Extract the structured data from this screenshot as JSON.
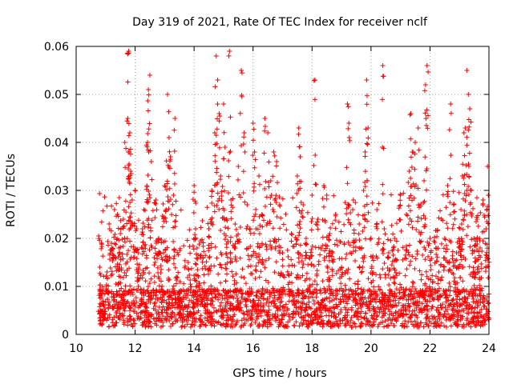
{
  "chart_data": {
    "type": "scatter",
    "title": "Day 319 of 2021, Rate Of TEC Index for receiver nclf",
    "xlabel": "GPS time / hours",
    "ylabel": "ROTI / TECUs",
    "xlim": [
      10,
      24
    ],
    "ylim": [
      0,
      0.06
    ],
    "x_ticks": [
      10,
      12,
      14,
      16,
      18,
      20,
      22,
      24
    ],
    "x_tick_labels": [
      "10",
      "12",
      "14",
      "16",
      "18",
      "20",
      "22",
      "24"
    ],
    "y_ticks": [
      0,
      0.01,
      0.02,
      0.03,
      0.04,
      0.05,
      0.06
    ],
    "y_tick_labels": [
      "0",
      "0.01",
      "0.02",
      "0.03",
      "0.04",
      "0.05",
      "0.06"
    ],
    "grid": true,
    "marker": "plus",
    "color": "#ff0000",
    "data_range_hours": [
      10.75,
      24.0
    ],
    "series": [
      {
        "name": "ROTI",
        "x": [
          10.8,
          10.85,
          10.95,
          11.05,
          11.2,
          11.3,
          11.4,
          11.45,
          11.5,
          11.6,
          11.65,
          11.75,
          11.78,
          11.8,
          11.82,
          11.85,
          11.9,
          12.0,
          12.05,
          12.1,
          12.25,
          12.3,
          12.4,
          12.42,
          12.45,
          12.5,
          12.55,
          12.7,
          12.8,
          12.9,
          13.0,
          13.05,
          13.1,
          13.15,
          13.2,
          13.3,
          13.35,
          13.4,
          13.5,
          13.6,
          13.8,
          14.0,
          14.05,
          14.1,
          14.15,
          14.3,
          14.5,
          14.6,
          14.7,
          14.75,
          14.8,
          14.85,
          14.9,
          15.0,
          15.05,
          15.1,
          15.2,
          15.25,
          15.4,
          15.5,
          15.6,
          15.7,
          15.8,
          15.9,
          16.0,
          16.05,
          16.1,
          16.2,
          16.3,
          16.4,
          16.5,
          16.6,
          16.7,
          16.8,
          16.9,
          17.0,
          17.3,
          17.5,
          17.55,
          17.6,
          17.7,
          17.8,
          17.9,
          18.0,
          18.1,
          18.2,
          18.4,
          18.5,
          18.6,
          18.7,
          18.8,
          19.0,
          19.2,
          19.25,
          19.4,
          19.6,
          19.75,
          19.8,
          19.85,
          19.9,
          20.0,
          20.05,
          20.2,
          20.4,
          20.45,
          20.6,
          20.8,
          21.0,
          21.2,
          21.3,
          21.35,
          21.4,
          21.5,
          21.6,
          21.8,
          21.85,
          21.9,
          22.0,
          22.2,
          22.3,
          22.5,
          22.6,
          22.7,
          22.8,
          22.9,
          23.0,
          23.05,
          23.1,
          23.15,
          23.2,
          23.25,
          23.3,
          23.35,
          23.4,
          23.5,
          23.6,
          23.7,
          23.8,
          23.9,
          23.95
        ],
        "y": [
          0.014,
          0.008,
          0.006,
          0.013,
          0.019,
          0.026,
          0.025,
          0.018,
          0.021,
          0.024,
          0.04,
          0.045,
          0.059,
          0.038,
          0.042,
          0.034,
          0.028,
          0.03,
          0.022,
          0.017,
          0.022,
          0.026,
          0.031,
          0.04,
          0.051,
          0.054,
          0.036,
          0.028,
          0.02,
          0.016,
          0.031,
          0.026,
          0.05,
          0.041,
          0.037,
          0.029,
          0.045,
          0.012,
          0.009,
          0.006,
          0.015,
          0.031,
          0.022,
          0.018,
          0.012,
          0.016,
          0.022,
          0.03,
          0.042,
          0.058,
          0.053,
          0.046,
          0.033,
          0.048,
          0.039,
          0.024,
          0.059,
          0.028,
          0.018,
          0.035,
          0.055,
          0.042,
          0.027,
          0.022,
          0.044,
          0.038,
          0.022,
          0.033,
          0.025,
          0.045,
          0.042,
          0.032,
          0.038,
          0.036,
          0.027,
          0.017,
          0.021,
          0.033,
          0.043,
          0.037,
          0.027,
          0.02,
          0.016,
          0.029,
          0.053,
          0.024,
          0.031,
          0.029,
          0.021,
          0.017,
          0.025,
          0.014,
          0.048,
          0.044,
          0.028,
          0.023,
          0.03,
          0.038,
          0.053,
          0.043,
          0.02,
          0.016,
          0.026,
          0.056,
          0.022,
          0.017,
          0.02,
          0.029,
          0.025,
          0.034,
          0.046,
          0.038,
          0.04,
          0.043,
          0.032,
          0.052,
          0.056,
          0.02,
          0.018,
          0.013,
          0.02,
          0.031,
          0.048,
          0.027,
          0.017,
          0.018,
          0.026,
          0.033,
          0.042,
          0.043,
          0.055,
          0.05,
          0.047,
          0.03,
          0.02,
          0.024,
          0.018,
          0.028,
          0.022,
          0.035
        ]
      }
    ]
  }
}
